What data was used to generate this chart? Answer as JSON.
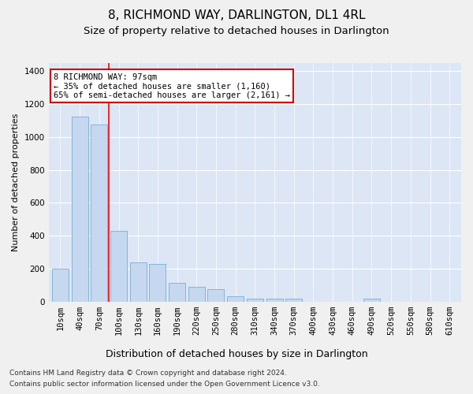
{
  "title": "8, RICHMOND WAY, DARLINGTON, DL1 4RL",
  "subtitle": "Size of property relative to detached houses in Darlington",
  "xlabel": "Distribution of detached houses by size in Darlington",
  "ylabel": "Number of detached properties",
  "bar_color": "#c5d8f0",
  "bar_edge_color": "#7aadd4",
  "background_color": "#dce6f5",
  "grid_color": "#ffffff",
  "categories": [
    "10sqm",
    "40sqm",
    "70sqm",
    "100sqm",
    "130sqm",
    "160sqm",
    "190sqm",
    "220sqm",
    "250sqm",
    "280sqm",
    "310sqm",
    "340sqm",
    "370sqm",
    "400sqm",
    "430sqm",
    "460sqm",
    "490sqm",
    "520sqm",
    "550sqm",
    "580sqm",
    "610sqm"
  ],
  "values": [
    200,
    1125,
    1075,
    430,
    240,
    230,
    115,
    90,
    75,
    30,
    18,
    18,
    18,
    0,
    0,
    0,
    18,
    0,
    0,
    0,
    0
  ],
  "ylim": [
    0,
    1450
  ],
  "yticks": [
    0,
    200,
    400,
    600,
    800,
    1000,
    1200,
    1400
  ],
  "red_line_x": 2.5,
  "annotation_text": "8 RICHMOND WAY: 97sqm\n← 35% of detached houses are smaller (1,160)\n65% of semi-detached houses are larger (2,161) →",
  "annotation_box_color": "#ffffff",
  "annotation_box_edge_color": "#cc0000",
  "footer_line1": "Contains HM Land Registry data © Crown copyright and database right 2024.",
  "footer_line2": "Contains public sector information licensed under the Open Government Licence v3.0.",
  "title_fontsize": 11,
  "subtitle_fontsize": 9.5,
  "ylabel_fontsize": 8,
  "xlabel_fontsize": 9,
  "tick_fontsize": 7.5,
  "annotation_fontsize": 7.5,
  "footer_fontsize": 6.5,
  "fig_bg": "#f0f0f0"
}
